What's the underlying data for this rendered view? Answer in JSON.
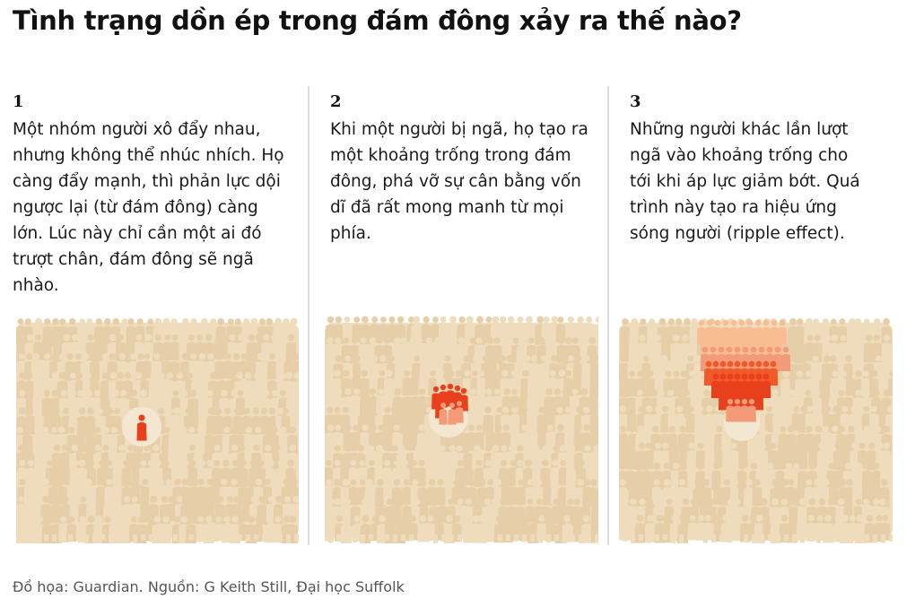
{
  "title": "Tình trạng dồn ép trong đám đông xảy ra thế nào?",
  "panels": [
    {
      "number": "1",
      "lines": [
        "Một nhóm người xô đẩy nhau,",
        "nhưng không thể nhúc nhích. Họ",
        "càng đẩy mạnh, thì phản lực dội",
        "ngược lại (từ đám đông) càng",
        "lớn. Lúc này chỉ cần một ai đó",
        "trượt chân, đám đông sẽ ngã",
        "nhào."
      ]
    },
    {
      "number": "2",
      "lines": [
        "Khi một người bị ngã, họ tạo ra",
        "một khoảng trống trong đám",
        "đông, phá vỡ sự cân bằng vốn",
        "dĩ đã rất mong manh từ mọi",
        "phía."
      ]
    },
    {
      "number": "3",
      "lines": [
        "Những người khác lần lượt",
        "ngã vào khoảng trống cho",
        "tới khi áp lực giảm bớt. Quá",
        "trình này tạo ra hiệu ứng",
        "sóng người (ripple effect)."
      ]
    }
  ],
  "source": "Đồ họa: Guardian. Nguồn: G Keith Still, Đại học Suffolk",
  "colors": {
    "crowd": "#efdcbc",
    "crowd_shade": "#e6cfa8",
    "highlight": "#f4e7d2",
    "person_red": "#e8401c",
    "person_orange": "#f05a28",
    "person_salmon": "#f39a78",
    "person_light": "#f8bd93",
    "separator": "#dcdcdc"
  }
}
